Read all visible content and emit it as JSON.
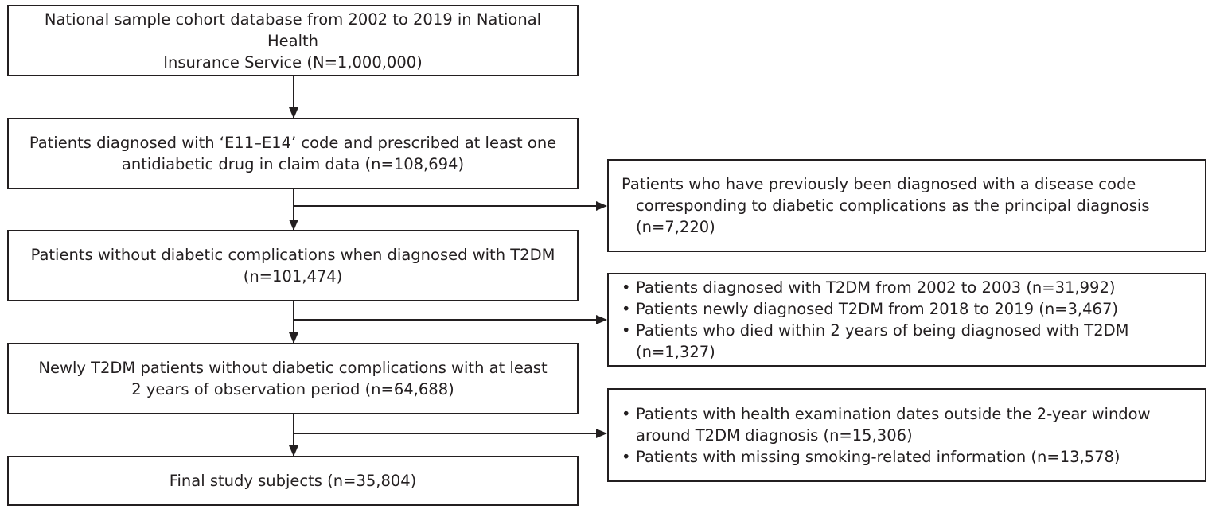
{
  "main_boxes": [
    {
      "lines": [
        "National sample cohort database from 2002 to 2019 in National Health",
        "Insurance Service (N=1,000,000)"
      ]
    },
    {
      "lines": [
        "Patients diagnosed with ‘E11–E14’ code and prescribed at least one",
        "antidiabetic drug in claim data (n=108,694)"
      ]
    },
    {
      "lines": [
        "Patients without diabetic complications when diagnosed with T2DM",
        "(n=101,474)"
      ]
    },
    {
      "lines": [
        "Newly T2DM patients without diabetic complications with at least",
        "2 years of observation period (n=64,688)"
      ]
    },
    {
      "lines": [
        "Final study subjects (n=35,804)"
      ]
    }
  ],
  "exclusion_boxes": [
    {
      "text": "Patients who have previously been diagnosed with a disease code corresponding to diabetic complications as the principal diagnosis (n=7,220)"
    },
    {
      "bullets": [
        "Patients diagnosed with T2DM from 2002 to 2003 (n=31,992)",
        "Patients newly diagnosed T2DM from 2018 to 2019 (n=3,467)",
        "Patients who died within 2 years of being diagnosed with T2DM (n=1,327)"
      ]
    },
    {
      "bullets": [
        "Patients with health examination dates outside the 2-year window around T2DM diagnosis (n=15,306)",
        "Patients with missing smoking-related information (n=13,578)"
      ]
    }
  ],
  "colors": {
    "stroke": "#231f20",
    "text": "#231f20",
    "background": "#ffffff"
  }
}
